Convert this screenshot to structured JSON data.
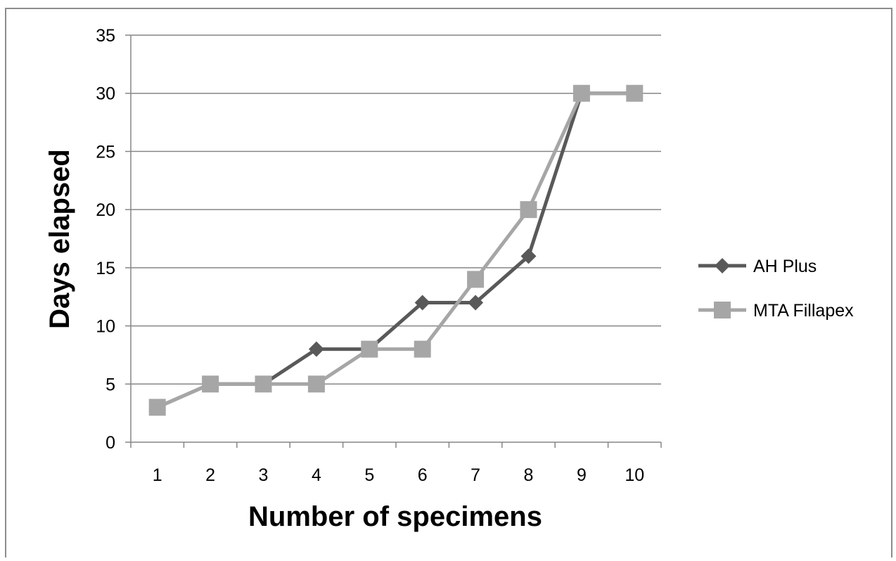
{
  "chart_data": {
    "type": "line",
    "title": "",
    "xlabel": "Number of specimens",
    "ylabel": "Days elapsed",
    "categories": [
      "1",
      "2",
      "3",
      "4",
      "5",
      "6",
      "7",
      "8",
      "9",
      "10"
    ],
    "ylim": [
      0,
      35
    ],
    "yticks": [
      0,
      5,
      10,
      15,
      20,
      25,
      30,
      35
    ],
    "grid": true,
    "legend_position": "right",
    "series": [
      {
        "name": "AH Plus",
        "marker": "diamond",
        "color": "#595959",
        "values": [
          3,
          5,
          5,
          8,
          8,
          12,
          12,
          16,
          30,
          30
        ]
      },
      {
        "name": "MTA Fillapex",
        "marker": "square",
        "color": "#a6a6a6",
        "values": [
          3,
          5,
          5,
          5,
          8,
          8,
          14,
          20,
          30,
          30
        ]
      }
    ]
  }
}
